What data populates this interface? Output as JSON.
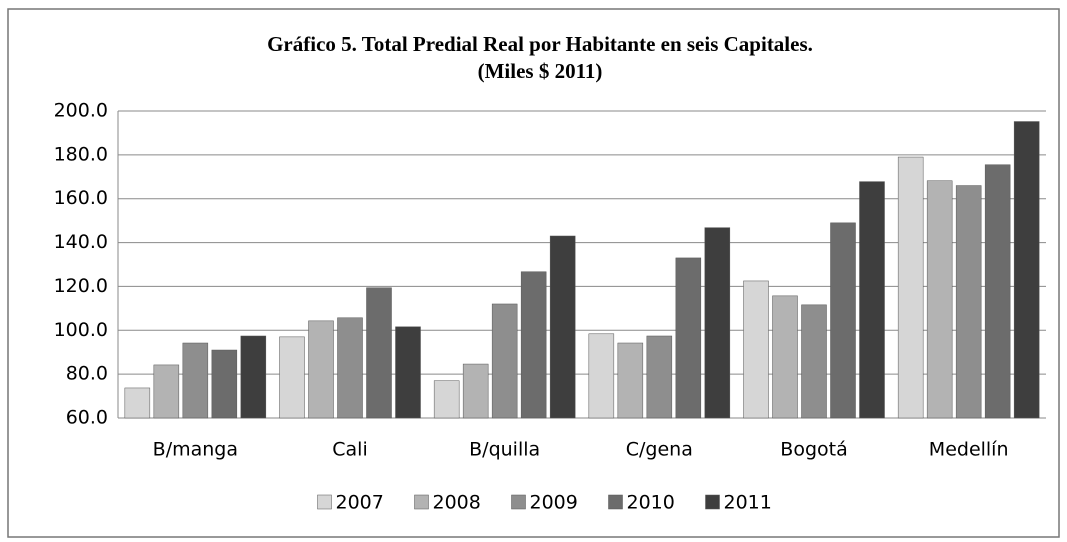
{
  "chart_data": {
    "type": "bar",
    "title": "Gráfico 5. Total Predial  Real por Habitante en seis Capitales.",
    "subtitle": "(Miles $  2011)",
    "categories": [
      "B/manga",
      "Cali",
      "B/quilla",
      "C/gena",
      "Bogotá",
      "Medellín"
    ],
    "series": [
      {
        "name": "2007",
        "color": "#d6d6d6",
        "values": [
          73.7,
          97.0,
          77.0,
          98.4,
          122.5,
          179.0
        ]
      },
      {
        "name": "2008",
        "color": "#b3b3b3",
        "values": [
          84.2,
          104.3,
          84.6,
          94.2,
          115.7,
          168.2
        ]
      },
      {
        "name": "2009",
        "color": "#8e8e8e",
        "values": [
          94.2,
          105.7,
          112.0,
          97.4,
          111.6,
          166.0
        ]
      },
      {
        "name": "2010",
        "color": "#6c6c6c",
        "values": [
          91.0,
          119.4,
          126.7,
          133.0,
          149.0,
          175.5
        ]
      },
      {
        "name": "2011",
        "color": "#3e3e3e",
        "values": [
          97.4,
          101.6,
          143.0,
          146.8,
          167.8,
          195.2
        ]
      }
    ],
    "ylim": [
      60,
      200
    ],
    "yticks": [
      {
        "value": 60,
        "label": "60.0"
      },
      {
        "value": 80,
        "label": "80.0"
      },
      {
        "value": 100,
        "label": "100.0"
      },
      {
        "value": 120,
        "label": "120.0"
      },
      {
        "value": 140,
        "label": "140.0"
      },
      {
        "value": 160,
        "label": "160.0"
      },
      {
        "value": 180,
        "label": "180.0"
      },
      {
        "value": 200,
        "label": "200.0"
      }
    ],
    "grid": true,
    "legend": "bottom"
  }
}
